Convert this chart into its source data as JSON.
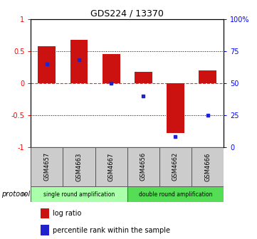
{
  "title": "GDS224 / 13370",
  "samples": [
    "GSM4657",
    "GSM4663",
    "GSM4667",
    "GSM4656",
    "GSM4662",
    "GSM4666"
  ],
  "log_ratio": [
    0.58,
    0.68,
    0.45,
    0.18,
    -0.78,
    0.2
  ],
  "percentile_rank": [
    65,
    68,
    50,
    40,
    8,
    25
  ],
  "bar_color": "#cc1111",
  "dot_color": "#2222cc",
  "ylim_left": [
    -1.0,
    1.0
  ],
  "ylim_right": [
    0,
    100
  ],
  "yticks_left": [
    -1.0,
    -0.5,
    0.0,
    0.5,
    1.0
  ],
  "ytick_labels_left": [
    "-1",
    "-0.5",
    "0",
    "0.5",
    "1"
  ],
  "yticks_right": [
    0,
    25,
    50,
    75,
    100
  ],
  "ytick_labels_right": [
    "0",
    "25",
    "50",
    "75",
    "100%"
  ],
  "protocol_label": "protocol",
  "single_color": "#aaffaa",
  "double_color": "#55dd55",
  "sample_box_color": "#cccccc",
  "bar_width": 0.55,
  "xlim": [
    -0.5,
    5.5
  ]
}
